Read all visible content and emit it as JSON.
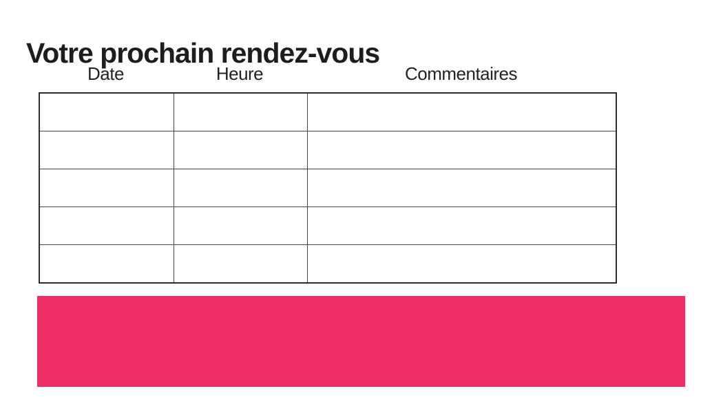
{
  "title": "Votre prochain rendez-vous",
  "table": {
    "headers": [
      "Date",
      "Heure",
      "Commentaires"
    ],
    "rows": [
      [
        "",
        "",
        ""
      ],
      [
        "",
        "",
        ""
      ],
      [
        "",
        "",
        ""
      ],
      [
        "",
        "",
        ""
      ],
      [
        "",
        "",
        ""
      ]
    ]
  },
  "banner": {
    "text": ""
  },
  "colors": {
    "banner": "#ED2D63",
    "table_border": "#2b2b2b",
    "title_text": "#1d1d1b"
  }
}
